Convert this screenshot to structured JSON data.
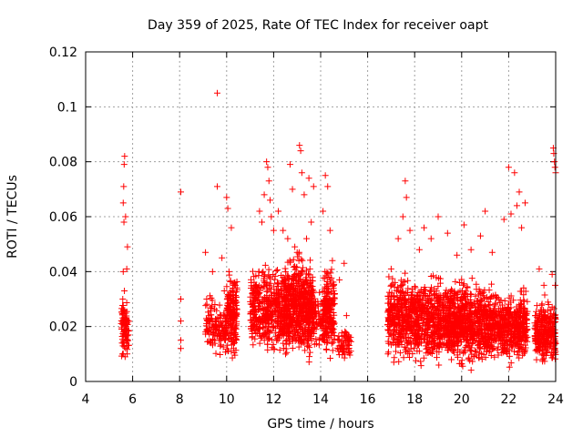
{
  "chart_data": {
    "type": "scatter",
    "title": "Day 359 of 2025, Rate Of TEC Index for receiver oapt",
    "xlabel": "GPS time / hours",
    "ylabel": "ROTI / TECUs",
    "xlim": [
      4,
      24
    ],
    "ylim": [
      0,
      0.12
    ],
    "xticks": [
      4,
      6,
      8,
      10,
      12,
      14,
      16,
      18,
      20,
      22,
      24
    ],
    "xtick_labels": [
      "4",
      "6",
      "8",
      "10",
      "12",
      "14",
      "16",
      "18",
      "20",
      "22",
      "24"
    ],
    "yticks": [
      0,
      0.02,
      0.04,
      0.06,
      0.08,
      0.1,
      0.12
    ],
    "ytick_labels": [
      "0",
      "0.02",
      "0.04",
      "0.06",
      "0.08",
      "0.1",
      "0.12"
    ],
    "grid": true,
    "marker": "+",
    "series_color": "#ff0000",
    "series": [
      {
        "name": "ROTI",
        "points": [
          [
            5.55,
            0.014
          ],
          [
            5.6,
            0.018
          ],
          [
            5.62,
            0.022
          ],
          [
            5.58,
            0.03
          ],
          [
            5.65,
            0.033
          ],
          [
            5.6,
            0.04
          ],
          [
            5.63,
            0.058
          ],
          [
            5.6,
            0.065
          ],
          [
            5.62,
            0.071
          ],
          [
            5.64,
            0.079
          ],
          [
            5.66,
            0.082
          ],
          [
            5.7,
            0.012
          ],
          [
            5.72,
            0.02
          ],
          [
            5.75,
            0.041
          ],
          [
            5.78,
            0.049
          ],
          [
            5.8,
            0.015
          ],
          [
            5.68,
            0.009
          ],
          [
            5.57,
            0.01
          ],
          [
            5.66,
            0.026
          ],
          [
            5.7,
            0.06
          ],
          [
            8.05,
            0.069
          ],
          [
            8.05,
            0.03
          ],
          [
            8.05,
            0.022
          ],
          [
            8.05,
            0.015
          ],
          [
            8.05,
            0.012
          ],
          [
            9.1,
            0.047
          ],
          [
            9.15,
            0.03
          ],
          [
            9.2,
            0.018
          ],
          [
            9.3,
            0.022
          ],
          [
            9.4,
            0.04
          ],
          [
            9.5,
            0.028
          ],
          [
            9.6,
            0.105
          ],
          [
            9.6,
            0.071
          ],
          [
            9.7,
            0.02
          ],
          [
            9.8,
            0.045
          ],
          [
            9.9,
            0.033
          ],
          [
            10.0,
            0.067
          ],
          [
            10.05,
            0.063
          ],
          [
            10.1,
            0.04
          ],
          [
            10.2,
            0.056
          ],
          [
            10.3,
            0.012
          ],
          [
            10.35,
            0.036
          ],
          [
            9.95,
            0.015
          ],
          [
            10.15,
            0.025
          ],
          [
            9.75,
            0.015
          ],
          [
            11.4,
            0.062
          ],
          [
            11.5,
            0.058
          ],
          [
            11.6,
            0.068
          ],
          [
            11.7,
            0.08
          ],
          [
            11.75,
            0.078
          ],
          [
            11.8,
            0.073
          ],
          [
            11.85,
            0.066
          ],
          [
            11.9,
            0.06
          ],
          [
            12.0,
            0.055
          ],
          [
            11.55,
            0.04
          ],
          [
            12.4,
            0.055
          ],
          [
            12.6,
            0.052
          ],
          [
            12.7,
            0.079
          ],
          [
            12.8,
            0.07
          ],
          [
            13.1,
            0.086
          ],
          [
            13.15,
            0.084
          ],
          [
            13.2,
            0.076
          ],
          [
            13.3,
            0.068
          ],
          [
            13.5,
            0.074
          ],
          [
            13.6,
            0.058
          ],
          [
            13.7,
            0.071
          ],
          [
            13.0,
            0.047
          ],
          [
            13.4,
            0.052
          ],
          [
            12.2,
            0.062
          ],
          [
            12.9,
            0.049
          ],
          [
            14.1,
            0.062
          ],
          [
            14.2,
            0.075
          ],
          [
            14.3,
            0.071
          ],
          [
            14.4,
            0.055
          ],
          [
            14.5,
            0.044
          ],
          [
            14.6,
            0.032
          ],
          [
            14.8,
            0.037
          ],
          [
            15.0,
            0.043
          ],
          [
            15.1,
            0.024
          ],
          [
            15.2,
            0.015
          ],
          [
            17.0,
            0.041
          ],
          [
            17.3,
            0.052
          ],
          [
            17.5,
            0.06
          ],
          [
            17.6,
            0.073
          ],
          [
            17.65,
            0.067
          ],
          [
            17.8,
            0.055
          ],
          [
            18.2,
            0.048
          ],
          [
            18.4,
            0.056
          ],
          [
            18.7,
            0.052
          ],
          [
            19.0,
            0.06
          ],
          [
            19.4,
            0.054
          ],
          [
            19.8,
            0.046
          ],
          [
            20.1,
            0.057
          ],
          [
            20.4,
            0.048
          ],
          [
            20.8,
            0.053
          ],
          [
            21.0,
            0.062
          ],
          [
            21.3,
            0.047
          ],
          [
            21.8,
            0.059
          ],
          [
            22.0,
            0.078
          ],
          [
            22.1,
            0.061
          ],
          [
            22.25,
            0.076
          ],
          [
            22.35,
            0.064
          ],
          [
            22.45,
            0.069
          ],
          [
            22.55,
            0.056
          ],
          [
            22.7,
            0.065
          ],
          [
            23.3,
            0.041
          ],
          [
            23.5,
            0.035
          ],
          [
            23.7,
            0.028
          ],
          [
            23.9,
            0.085
          ],
          [
            23.92,
            0.083
          ],
          [
            23.95,
            0.08
          ],
          [
            23.97,
            0.078
          ],
          [
            24.0,
            0.076
          ],
          [
            23.85,
            0.039
          ],
          [
            23.98,
            0.035
          ]
        ],
        "dense_clusters": [
          {
            "x_range": [
              5.5,
              5.85
            ],
            "y_range": [
              0.006,
              0.032
            ],
            "count": 80
          },
          {
            "x_range": [
              9.1,
              9.4
            ],
            "y_range": [
              0.01,
              0.035
            ],
            "count": 45
          },
          {
            "x_range": [
              9.4,
              10.0
            ],
            "y_range": [
              0.008,
              0.03
            ],
            "count": 90
          },
          {
            "x_range": [
              10.0,
              10.45
            ],
            "y_range": [
              0.006,
              0.043
            ],
            "count": 180
          },
          {
            "x_range": [
              11.0,
              12.4
            ],
            "y_range": [
              0.006,
              0.045
            ],
            "count": 400
          },
          {
            "x_range": [
              12.4,
              13.7
            ],
            "y_range": [
              0.004,
              0.05
            ],
            "count": 650
          },
          {
            "x_range": [
              13.7,
              14.1
            ],
            "y_range": [
              0.01,
              0.035
            ],
            "count": 60
          },
          {
            "x_range": [
              14.1,
              14.6
            ],
            "y_range": [
              0.006,
              0.045
            ],
            "count": 200
          },
          {
            "x_range": [
              14.7,
              15.3
            ],
            "y_range": [
              0.006,
              0.022
            ],
            "count": 60
          },
          {
            "x_range": [
              16.85,
              19.0
            ],
            "y_range": [
              0.003,
              0.042
            ],
            "count": 700
          },
          {
            "x_range": [
              19.0,
              21.0
            ],
            "y_range": [
              0.003,
              0.04
            ],
            "count": 750
          },
          {
            "x_range": [
              21.0,
              22.8
            ],
            "y_range": [
              0.004,
              0.036
            ],
            "count": 600
          },
          {
            "x_range": [
              23.1,
              24.0
            ],
            "y_range": [
              0.004,
              0.032
            ],
            "count": 280
          }
        ]
      }
    ]
  }
}
